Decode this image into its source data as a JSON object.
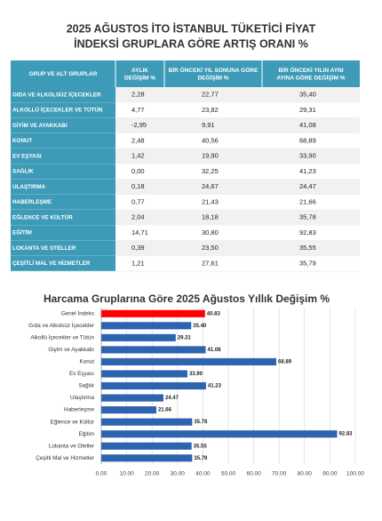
{
  "header": {
    "title_lines": [
      "2025 AĞUSTOS İTO İSTANBUL TÜKETİCİ FİYAT",
      "İNDEKSİ GRUPLARA GÖRE ARTIŞ ORANI %"
    ]
  },
  "table": {
    "columns": [
      "GRUP VE ALT GRUPLAR",
      "AYLIK DEĞİŞİM %",
      "BİR ÖNCEKİ YIL SONUNA GÖRE DEĞİŞİM %",
      "BİR ÖNCEKİ YILIN AYNI AYINA GÖRE DEĞİŞİM %"
    ],
    "rows": [
      [
        "GIDA VE ALKOLSÜZ İÇECEKLER",
        "2,28",
        "22,77",
        "35,40"
      ],
      [
        "ALKOLLÜ İÇECEKLER VE TÜTÜN",
        "4,77",
        "23,82",
        "29,31"
      ],
      [
        "GİYİM VE AYAKKABI",
        "-2,95",
        "9,91",
        "41,08"
      ],
      [
        "KONUT",
        "2,48",
        "40,56",
        "68,89"
      ],
      [
        "EV EŞYASI",
        "1,42",
        "19,90",
        "33,90"
      ],
      [
        "SAĞLIK",
        "0,00",
        "32,25",
        "41,23"
      ],
      [
        "ULAŞTIRMA",
        "0,18",
        "24,67",
        "24,47"
      ],
      [
        "HABERLEŞME",
        "0,77",
        "21,43",
        "21,66"
      ],
      [
        "EĞLENCE VE KÜLTÜR",
        "2,04",
        "18,18",
        "35,78"
      ],
      [
        "EĞİTİM",
        "14,71",
        "30,80",
        "92,83"
      ],
      [
        "LOKANTA VE OTELLER",
        "0,39",
        "23,50",
        "35,55"
      ],
      [
        "ÇEŞİTLİ MAL VE HİZMETLER",
        "1,21",
        "27,61",
        "35,79"
      ]
    ]
  },
  "chart_data": {
    "type": "hbar",
    "title": "Harcama Gruplarına Göre 2025 Ağustos  Yıllık Değişim %",
    "categories": [
      "Genel İndeks",
      "Gıda ve Alkolsüz İçecekler",
      "Alkollü İçecekler ve Tütün",
      "Giyim ve Ayakkabı",
      "Konut",
      "Ev Eşyası",
      "Sağlık",
      "Ulaştırma",
      "Haberleşme",
      "Eğlence ve Kültür",
      "Eğitim",
      "Lokanta ve Oteller",
      "Çeşitli Mal ve Hizmetler"
    ],
    "values": [
      40.83,
      35.4,
      29.31,
      41.08,
      68.89,
      33.9,
      41.23,
      24.47,
      21.66,
      35.78,
      92.83,
      35.55,
      35.79
    ],
    "value_labels": [
      "40.83",
      "35.40",
      "29.31",
      "41.08",
      "68.89",
      "33.90",
      "41.23",
      "24.47",
      "21.66",
      "35.78",
      "92.83",
      "35.55",
      "35.79"
    ],
    "colors": [
      "#ff0000",
      "#2e63b0",
      "#2e63b0",
      "#2e63b0",
      "#2e63b0",
      "#2e63b0",
      "#2e63b0",
      "#2e63b0",
      "#2e63b0",
      "#2e63b0",
      "#2e63b0",
      "#2e63b0",
      "#2e63b0"
    ],
    "xlim": [
      0,
      100
    ],
    "xticks": [
      {
        "value": 0,
        "label": "0.00"
      },
      {
        "value": 10,
        "label": "10.00"
      },
      {
        "value": 20,
        "label": "20.00"
      },
      {
        "value": 30,
        "label": "30.00"
      },
      {
        "value": 40,
        "label": "40.00"
      },
      {
        "value": 50,
        "label": "50.00"
      },
      {
        "value": 60,
        "label": "60.00"
      },
      {
        "value": 70,
        "label": "70.00"
      },
      {
        "value": 80,
        "label": "80.00"
      },
      {
        "value": 90,
        "label": "90.00"
      },
      {
        "value": 100,
        "label": "100.00"
      }
    ]
  }
}
